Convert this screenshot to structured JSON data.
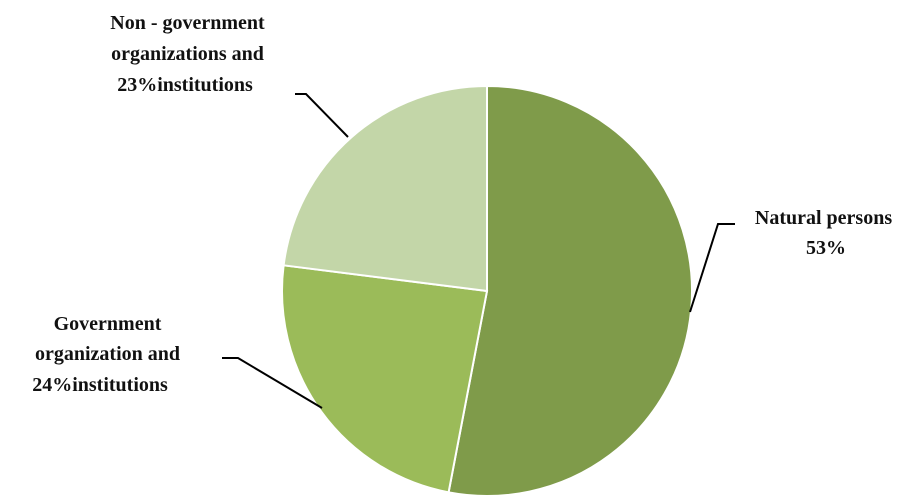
{
  "chart_data": {
    "type": "pie",
    "title": "",
    "slices": [
      {
        "name": "Natural persons",
        "value": 53,
        "label_lines": [
          "Natural persons",
          "53%"
        ],
        "color": "#7f9b4a"
      },
      {
        "name": "Government organization and institutions",
        "value": 24,
        "label_lines": [
          "Government",
          "organization and",
          "24%institutions"
        ],
        "color": "#9bbb59"
      },
      {
        "name": "Non - government organizations and institutions",
        "value": 23,
        "label_lines": [
          "Non - government",
          "organizations and",
          "23%institutions"
        ],
        "color": "#c3d6a8"
      }
    ],
    "legend": "none",
    "start_angle_deg": 0,
    "direction": "clockwise"
  }
}
